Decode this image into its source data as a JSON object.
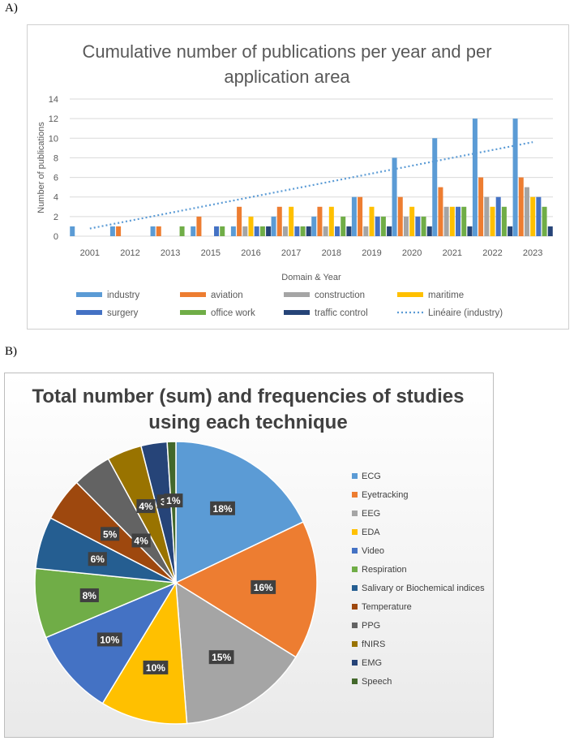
{
  "panel_labels": {
    "a": "A)",
    "b": "B)"
  },
  "chart_data": [
    {
      "type": "bar",
      "title": "Cumulative number of publications per year and per application area",
      "title_lines": [
        "Cumulative number of publications per year and per",
        "application area"
      ],
      "xlabel": "Domain & Year",
      "ylabel": "Number of publications",
      "ylim": [
        0,
        14
      ],
      "yticks": [
        0,
        2,
        4,
        6,
        8,
        10,
        12,
        14
      ],
      "grid": true,
      "legend_position": "bottom",
      "categories": [
        "2001",
        "2012",
        "2013",
        "2015",
        "2016",
        "2017",
        "2018",
        "2019",
        "2020",
        "2021",
        "2022",
        "2023"
      ],
      "series": [
        {
          "name": "industry",
          "color": "#5b9bd5",
          "values": [
            1,
            1,
            1,
            1,
            1,
            2,
            2,
            4,
            8,
            10,
            12,
            12
          ]
        },
        {
          "name": "aviation",
          "color": "#ed7d31",
          "values": [
            0,
            1,
            1,
            2,
            3,
            3,
            3,
            4,
            4,
            5,
            6,
            6
          ]
        },
        {
          "name": "construction",
          "color": "#a5a5a5",
          "values": [
            0,
            0,
            0,
            0,
            1,
            1,
            1,
            1,
            2,
            3,
            4,
            5
          ]
        },
        {
          "name": "maritime",
          "color": "#ffc000",
          "values": [
            0,
            0,
            0,
            0,
            2,
            3,
            3,
            3,
            3,
            3,
            3,
            4
          ]
        },
        {
          "name": "surgery",
          "color": "#4472c4",
          "values": [
            0,
            0,
            0,
            1,
            1,
            1,
            1,
            2,
            2,
            3,
            4,
            4
          ]
        },
        {
          "name": "office work",
          "color": "#70ad47",
          "values": [
            0,
            0,
            1,
            1,
            1,
            1,
            2,
            2,
            2,
            3,
            3,
            3
          ]
        },
        {
          "name": "traffic control",
          "color": "#264478",
          "values": [
            0,
            0,
            0,
            0,
            1,
            1,
            1,
            1,
            1,
            1,
            1,
            1
          ]
        }
      ],
      "trendline": {
        "name": "Linéaire (industry)",
        "color": "#5b9bd5",
        "start": 0.78,
        "end": 9.6
      }
    },
    {
      "type": "pie",
      "title": "Total number (sum) and frequencies of studies using each technique",
      "title_lines": [
        "Total number (sum) and frequencies of studies",
        "using each technique"
      ],
      "legend_position": "right",
      "slices": [
        {
          "name": "ECG",
          "value": 18,
          "label": "18%",
          "color": "#5b9bd5"
        },
        {
          "name": "Eyetracking",
          "value": 16,
          "label": "16%",
          "color": "#ed7d31"
        },
        {
          "name": "EEG",
          "value": 15,
          "label": "15%",
          "color": "#a5a5a5"
        },
        {
          "name": "EDA",
          "value": 10,
          "label": "10%",
          "color": "#ffc000"
        },
        {
          "name": "Video",
          "value": 10,
          "label": "10%",
          "color": "#4472c4"
        },
        {
          "name": "Respiration",
          "value": 8,
          "label": "8%",
          "color": "#70ad47"
        },
        {
          "name": "Salivary or Biochemical indices",
          "value": 6,
          "label": "6%",
          "color": "#255e91"
        },
        {
          "name": "Temperature",
          "value": 5,
          "label": "5%",
          "color": "#9e480e"
        },
        {
          "name": "PPG",
          "value": 4.5,
          "label": "",
          "color": "#636363"
        },
        {
          "name": "fNIRS",
          "value": 4,
          "label": "4%",
          "color": "#997300"
        },
        {
          "name": "EMG",
          "value": 3,
          "label": "3",
          "color": "#264478"
        },
        {
          "name": "Speech",
          "value": 1,
          "label": "1%",
          "color": "#43682b"
        }
      ],
      "extra_labels": [
        "4%"
      ]
    }
  ]
}
